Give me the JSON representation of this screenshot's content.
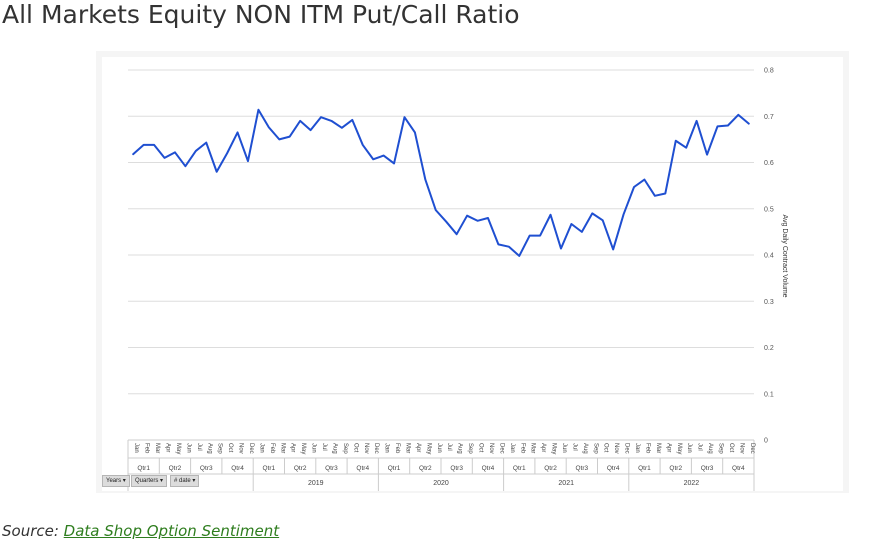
{
  "title": "All Markets Equity NON ITM Put/Call Ratio",
  "source": {
    "prefix": "Source: ",
    "link_text": "Data Shop Option Sentiment"
  },
  "field_buttons": [
    {
      "label": "Years ▾"
    },
    {
      "label": "Quarters ▾"
    },
    {
      "label": "# date ▾"
    }
  ],
  "chart_data": {
    "type": "line",
    "ylabel": "Avg Daily Contract Volume",
    "ylim": [
      0,
      0.8
    ],
    "y_axis_side": "right",
    "yticks": [
      "0",
      "0.1",
      "0.2",
      "0.3",
      "0.4",
      "0.5",
      "0.6",
      "0.7",
      "0.8"
    ],
    "grid": true,
    "line_color": "#1f4fd1",
    "years": [
      "",
      "2019",
      "2020",
      "2021",
      "2022"
    ],
    "quarters": [
      "Qtr1",
      "Qtr2",
      "Qtr3",
      "Qtr4"
    ],
    "months": [
      "Jan",
      "Feb",
      "Mar",
      "Apr",
      "May",
      "Jun",
      "Jul",
      "Aug",
      "Sep",
      "Oct",
      "Nov",
      "Dec"
    ],
    "series": [
      {
        "values": [
          0.618,
          0.638,
          0.638,
          0.61,
          0.622,
          0.592,
          0.625,
          0.643,
          0.58,
          0.62,
          0.665,
          0.603,
          0.714,
          0.676,
          0.65,
          0.656,
          0.69,
          0.67,
          0.698,
          0.69,
          0.675,
          0.692,
          0.638,
          0.607,
          0.615,
          0.598,
          0.698,
          0.665,
          0.563,
          0.497,
          0.472,
          0.445,
          0.485,
          0.474,
          0.48,
          0.423,
          0.418,
          0.398,
          0.442,
          0.442,
          0.487,
          0.414,
          0.467,
          0.45,
          0.49,
          0.475,
          0.412,
          0.488,
          0.547,
          0.563,
          0.528,
          0.533,
          0.647,
          0.632,
          0.69,
          0.617,
          0.678,
          0.68,
          0.703,
          0.684
        ]
      }
    ]
  }
}
